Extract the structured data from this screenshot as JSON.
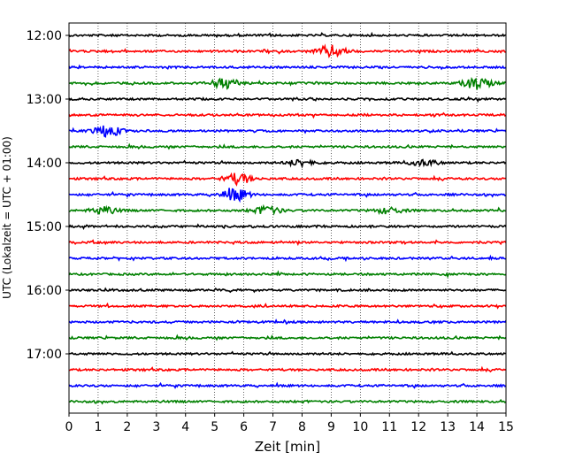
{
  "chart_data": {
    "type": "line",
    "title": "",
    "xlabel": "Zeit  [min]",
    "ylabel": "UTC (Lokalzeit = UTC + 01:00)",
    "xlim": [
      0,
      15
    ],
    "x_ticks": [
      0,
      1,
      2,
      3,
      4,
      5,
      6,
      7,
      8,
      9,
      10,
      11,
      12,
      13,
      14,
      15
    ],
    "x_tick_labels": [
      "0",
      "1",
      "2",
      "3",
      "4",
      "5",
      "6",
      "7",
      "8",
      "9",
      "10",
      "11",
      "12",
      "13",
      "14",
      "15"
    ],
    "y_tick_labels": [
      "12:00",
      "13:00",
      "14:00",
      "15:00",
      "16:00",
      "17:00"
    ],
    "grid": "vertical dotted lines at each minute",
    "trace_interval_min": 15,
    "color_cycle": [
      "#000000",
      "#ff0000",
      "#0000ff",
      "#008000"
    ],
    "traces": [
      {
        "start": "12:00",
        "color": "#000000",
        "events": []
      },
      {
        "start": "12:15",
        "color": "#ff0000",
        "events": [
          {
            "t": 9.0,
            "amp": 1.0
          }
        ]
      },
      {
        "start": "12:30",
        "color": "#0000ff",
        "events": []
      },
      {
        "start": "12:45",
        "color": "#008000",
        "events": [
          {
            "t": 5.4,
            "amp": 0.9
          },
          {
            "t": 14.0,
            "amp": 1.0
          }
        ]
      },
      {
        "start": "13:00",
        "color": "#000000",
        "events": []
      },
      {
        "start": "13:15",
        "color": "#ff0000",
        "events": []
      },
      {
        "start": "13:30",
        "color": "#0000ff",
        "events": [
          {
            "t": 1.3,
            "amp": 1.0
          }
        ]
      },
      {
        "start": "13:45",
        "color": "#008000",
        "events": []
      },
      {
        "start": "14:00",
        "color": "#000000",
        "events": [
          {
            "t": 8.0,
            "amp": 0.6
          },
          {
            "t": 12.2,
            "amp": 0.5
          }
        ]
      },
      {
        "start": "14:15",
        "color": "#ff0000",
        "events": [
          {
            "t": 5.8,
            "amp": 0.9
          }
        ]
      },
      {
        "start": "14:30",
        "color": "#0000ff",
        "events": [
          {
            "t": 5.7,
            "amp": 1.0
          }
        ]
      },
      {
        "start": "14:45",
        "color": "#008000",
        "events": [
          {
            "t": 1.2,
            "amp": 0.6
          },
          {
            "t": 6.8,
            "amp": 0.7
          },
          {
            "t": 11.0,
            "amp": 0.5
          }
        ]
      },
      {
        "start": "15:00",
        "color": "#000000",
        "events": []
      },
      {
        "start": "15:15",
        "color": "#ff0000",
        "events": []
      },
      {
        "start": "15:30",
        "color": "#0000ff",
        "events": []
      },
      {
        "start": "15:45",
        "color": "#008000",
        "events": []
      },
      {
        "start": "16:00",
        "color": "#000000",
        "events": []
      },
      {
        "start": "16:15",
        "color": "#ff0000",
        "events": []
      },
      {
        "start": "16:30",
        "color": "#0000ff",
        "events": []
      },
      {
        "start": "16:45",
        "color": "#008000",
        "events": []
      },
      {
        "start": "17:00",
        "color": "#000000",
        "events": []
      },
      {
        "start": "17:15",
        "color": "#ff0000",
        "events": []
      },
      {
        "start": "17:30",
        "color": "#0000ff",
        "events": []
      },
      {
        "start": "17:45",
        "color": "#008000",
        "events": []
      }
    ]
  }
}
